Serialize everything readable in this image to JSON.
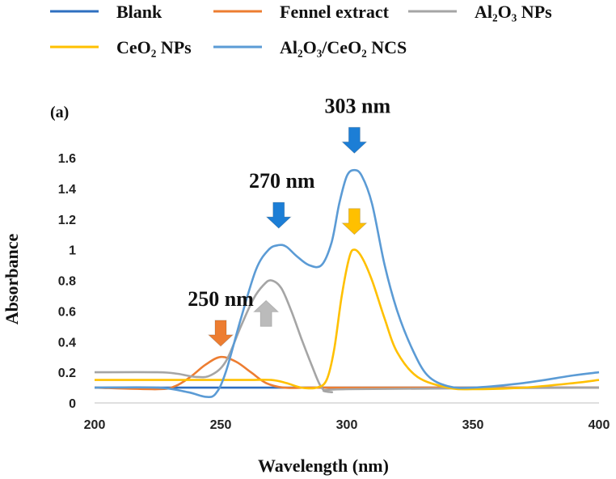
{
  "chart_data": {
    "type": "line",
    "panel_label": "(a)",
    "xlabel": "Wavelength (nm)",
    "ylabel": "Absorbance",
    "xlim": [
      200,
      400
    ],
    "ylim": [
      0,
      1.6
    ],
    "x_ticks": [
      200,
      250,
      300,
      350,
      400
    ],
    "x_tick_labels": [
      "200",
      "250",
      "300",
      "350",
      "400"
    ],
    "y_ticks": [
      0,
      0.2,
      0.4,
      0.6,
      0.8,
      1,
      1.2,
      1.4,
      1.6
    ],
    "y_tick_labels": [
      "0",
      "0.2",
      "0.4",
      "0.6",
      "0.8",
      "1",
      "1.2",
      "1.4",
      "1.6"
    ],
    "series": [
      {
        "name": "Blank",
        "color": "#2E6FC0",
        "x": [
          200,
          220,
          240,
          260,
          280,
          300,
          320,
          340,
          360,
          380,
          400
        ],
        "values": [
          0.1,
          0.1,
          0.1,
          0.1,
          0.1,
          0.1,
          0.1,
          0.1,
          0.1,
          0.1,
          0.1
        ]
      },
      {
        "name": "Fennel extract",
        "color": "#ED7D31",
        "x": [
          200,
          225,
          232,
          238,
          244,
          250,
          256,
          262,
          268,
          275,
          285,
          300,
          400
        ],
        "values": [
          0.1,
          0.09,
          0.11,
          0.17,
          0.25,
          0.3,
          0.27,
          0.2,
          0.13,
          0.1,
          0.1,
          0.1,
          0.1
        ]
      },
      {
        "name": "Al2O3 NPs",
        "color": "#A5A5A5",
        "x": [
          200,
          225,
          233,
          240,
          246,
          252,
          258,
          263,
          267,
          270,
          274,
          278,
          282,
          286,
          290,
          294,
          300,
          400
        ],
        "values": [
          0.2,
          0.2,
          0.19,
          0.17,
          0.18,
          0.27,
          0.5,
          0.68,
          0.77,
          0.8,
          0.75,
          0.6,
          0.42,
          0.25,
          0.1,
          0.07,
          0.09,
          0.1
        ]
      },
      {
        "name": "CeO2 NPs",
        "color": "#FFC000",
        "x": [
          200,
          220,
          240,
          260,
          270,
          276,
          282,
          288,
          292,
          295,
          298,
          301,
          303,
          306,
          310,
          315,
          320,
          328,
          340,
          350,
          370,
          390,
          400
        ],
        "values": [
          0.15,
          0.15,
          0.15,
          0.15,
          0.15,
          0.13,
          0.1,
          0.1,
          0.15,
          0.35,
          0.7,
          0.95,
          1.0,
          0.95,
          0.8,
          0.55,
          0.33,
          0.17,
          0.1,
          0.09,
          0.1,
          0.13,
          0.15
        ]
      },
      {
        "name": "Al2O3/CeO2 NCS",
        "color": "#5B9BD5",
        "x": [
          200,
          225,
          237,
          244,
          248,
          252,
          258,
          264,
          269,
          273,
          276,
          280,
          285,
          290,
          294,
          297,
          300,
          303,
          306,
          310,
          315,
          320,
          326,
          332,
          340,
          350,
          370,
          390,
          400
        ],
        "values": [
          0.1,
          0.1,
          0.07,
          0.04,
          0.06,
          0.2,
          0.55,
          0.87,
          1.0,
          1.03,
          1.02,
          0.96,
          0.9,
          0.9,
          1.05,
          1.3,
          1.48,
          1.52,
          1.48,
          1.3,
          0.9,
          0.6,
          0.35,
          0.18,
          0.11,
          0.1,
          0.13,
          0.18,
          0.2
        ]
      }
    ],
    "legend": [
      {
        "text": "Blank",
        "color": "#2E6FC0"
      },
      {
        "text": "Fennel extract",
        "color": "#ED7D31"
      },
      {
        "text": "Al₂O₃ NPs",
        "color": "#A5A5A5"
      },
      {
        "text": "CeO₂ NPs",
        "color": "#FFC000"
      },
      {
        "text": "Al₂O₃/CeO₂ NCS",
        "color": "#5B9BD5"
      }
    ],
    "legend_position": "top",
    "annotations": [
      {
        "text": "250 nm",
        "x": 250,
        "arrow_color": "#ED7D31",
        "arrow_direction": "down",
        "arrow_y": 0.37
      },
      {
        "text": "270 nm",
        "x": 273,
        "arrow_color": "#1C7ED6",
        "arrow_direction": "down",
        "arrow_y": 1.14
      },
      {
        "text": "303 nm",
        "x": 303,
        "arrow_color": "#1C7ED6",
        "arrow_direction": "down",
        "arrow_y": 1.63
      },
      {
        "text": "",
        "x": 303,
        "arrow_color": "#FFC000",
        "arrow_direction": "down",
        "arrow_y": 1.1
      },
      {
        "text": "",
        "x": 268,
        "arrow_color": "#BBBBBB",
        "arrow_direction": "up",
        "arrow_y": 0.5
      }
    ]
  }
}
